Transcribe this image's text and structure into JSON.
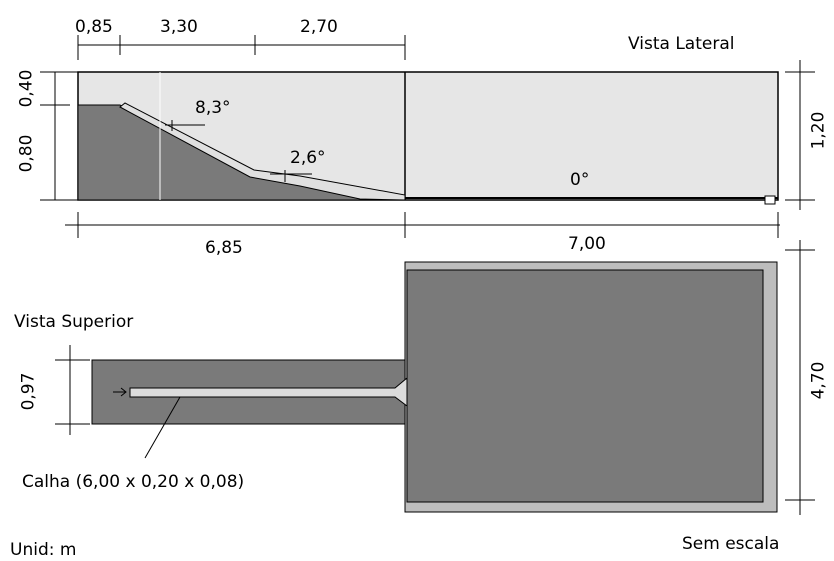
{
  "views": {
    "side": {
      "title": "Vista Lateral"
    },
    "top": {
      "title": "Vista Superior"
    }
  },
  "dimensions": {
    "top_1": "0,85",
    "top_2": "3,30",
    "top_3": "2,70",
    "left_upper": "0,40",
    "left_lower": "0,80",
    "right_height": "1,20",
    "bottom_ramp": "6,85",
    "bottom_basin": "7,00",
    "basin_width": "4,70",
    "channel_width": "0,97"
  },
  "angles": {
    "slope_1": "8,3°",
    "slope_2": "2,6°",
    "slope_3": "0°"
  },
  "channel": {
    "label": "Calha (6,00 x 0,20 x 0,08)"
  },
  "footer": {
    "units": "Unid: m",
    "scale_note": "Sem escala"
  },
  "colors": {
    "tank_fill": "#e6e6e6",
    "terrain_fill": "#7a7a7a",
    "basin_border": "#bdbdbd",
    "basin_inner": "#7a7a7a",
    "line": "#000000"
  }
}
